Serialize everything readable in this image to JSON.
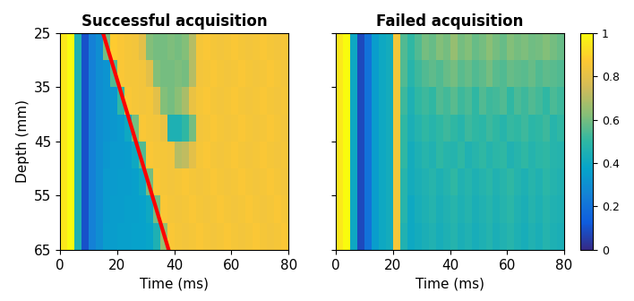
{
  "chart_data": [
    {
      "type": "heatmap",
      "title": "Successful acquisition",
      "x_label": "Time (ms)",
      "y_label": "Depth (mm)",
      "xlim": [
        0,
        80
      ],
      "xticks": [
        0,
        20,
        40,
        60,
        80
      ],
      "ylim": [
        65,
        25
      ],
      "yticks": [
        25,
        35,
        45,
        55,
        65
      ],
      "tick_labels": true,
      "x_edges": [
        0,
        2.5,
        5,
        7.5,
        10,
        12.5,
        15,
        17.5,
        20,
        22.5,
        25,
        27.5,
        30,
        32.5,
        35,
        37.5,
        40,
        42.5,
        45,
        47.5,
        50,
        52.5,
        55,
        57.5,
        60,
        62.5,
        65,
        67.5,
        70,
        72.5,
        75,
        77.5,
        80
      ],
      "y_edges": [
        25,
        30,
        35,
        40,
        45,
        50,
        55,
        60,
        65
      ],
      "cells": [
        [
          0.95,
          1.0,
          0.45,
          0.1,
          0.25,
          0.3,
          0.6,
          0.88,
          0.86,
          0.85,
          0.84,
          0.8,
          0.62,
          0.6,
          0.6,
          0.61,
          0.6,
          0.62,
          0.7,
          0.85,
          0.86,
          0.85,
          0.84,
          0.85,
          0.86,
          0.85,
          0.84,
          0.85,
          0.86,
          0.85,
          0.84,
          0.85
        ],
        [
          0.95,
          1.0,
          0.45,
          0.1,
          0.25,
          0.3,
          0.32,
          0.55,
          0.86,
          0.85,
          0.85,
          0.84,
          0.8,
          0.62,
          0.6,
          0.6,
          0.61,
          0.6,
          0.7,
          0.84,
          0.85,
          0.86,
          0.85,
          0.84,
          0.85,
          0.86,
          0.85,
          0.84,
          0.85,
          0.86,
          0.85,
          0.84
        ],
        [
          0.95,
          1.0,
          0.45,
          0.1,
          0.25,
          0.3,
          0.32,
          0.33,
          0.5,
          0.86,
          0.85,
          0.84,
          0.85,
          0.8,
          0.62,
          0.6,
          0.63,
          0.68,
          0.82,
          0.85,
          0.86,
          0.85,
          0.84,
          0.85,
          0.86,
          0.85,
          0.84,
          0.85,
          0.86,
          0.85,
          0.84,
          0.85
        ],
        [
          0.95,
          1.0,
          0.45,
          0.1,
          0.25,
          0.3,
          0.32,
          0.33,
          0.34,
          0.4,
          0.6,
          0.86,
          0.85,
          0.84,
          0.82,
          0.45,
          0.45,
          0.5,
          0.6,
          0.84,
          0.85,
          0.86,
          0.85,
          0.84,
          0.85,
          0.86,
          0.85,
          0.84,
          0.85,
          0.86,
          0.85,
          0.84
        ],
        [
          0.95,
          1.0,
          0.45,
          0.1,
          0.25,
          0.3,
          0.33,
          0.34,
          0.34,
          0.35,
          0.4,
          0.55,
          0.86,
          0.85,
          0.85,
          0.84,
          0.7,
          0.72,
          0.8,
          0.85,
          0.86,
          0.85,
          0.84,
          0.85,
          0.86,
          0.85,
          0.84,
          0.85,
          0.86,
          0.85,
          0.84,
          0.85
        ],
        [
          0.95,
          1.0,
          0.45,
          0.1,
          0.25,
          0.3,
          0.34,
          0.34,
          0.35,
          0.35,
          0.36,
          0.4,
          0.6,
          0.86,
          0.85,
          0.84,
          0.85,
          0.86,
          0.85,
          0.84,
          0.85,
          0.86,
          0.85,
          0.84,
          0.85,
          0.86,
          0.85,
          0.84,
          0.85,
          0.86,
          0.85,
          0.84
        ],
        [
          0.95,
          1.0,
          0.45,
          0.1,
          0.25,
          0.3,
          0.34,
          0.35,
          0.35,
          0.36,
          0.36,
          0.37,
          0.4,
          0.6,
          0.86,
          0.85,
          0.84,
          0.85,
          0.86,
          0.85,
          0.84,
          0.85,
          0.86,
          0.85,
          0.84,
          0.85,
          0.86,
          0.85,
          0.84,
          0.85,
          0.86,
          0.85
        ],
        [
          0.95,
          1.0,
          0.45,
          0.1,
          0.25,
          0.3,
          0.35,
          0.35,
          0.36,
          0.36,
          0.37,
          0.37,
          0.38,
          0.45,
          0.65,
          0.86,
          0.85,
          0.84,
          0.85,
          0.86,
          0.85,
          0.84,
          0.85,
          0.86,
          0.85,
          0.84,
          0.85,
          0.86,
          0.85,
          0.84,
          0.85,
          0.86
        ]
      ],
      "line": {
        "x": [
          15,
          38
        ],
        "y": [
          25,
          65
        ],
        "color": "#ff0000"
      }
    },
    {
      "type": "heatmap",
      "title": "Failed acquisition",
      "x_label": "Time (ms)",
      "xlim": [
        0,
        80
      ],
      "xticks": [
        0,
        20,
        40,
        60,
        80
      ],
      "ylim": [
        65,
        25
      ],
      "yticks": [
        25,
        35,
        45,
        55,
        65
      ],
      "tick_labels": "x",
      "x_edges": [
        0,
        2.5,
        5,
        7.5,
        10,
        12.5,
        15,
        17.5,
        20,
        22.5,
        25,
        27.5,
        30,
        32.5,
        35,
        37.5,
        40,
        42.5,
        45,
        47.5,
        50,
        52.5,
        55,
        57.5,
        60,
        62.5,
        65,
        67.5,
        70,
        72.5,
        75,
        77.5,
        80
      ],
      "y_edges": [
        25,
        30,
        35,
        40,
        45,
        50,
        55,
        60,
        65
      ],
      "cells": [
        [
          0.95,
          1.0,
          0.4,
          0.08,
          0.2,
          0.35,
          0.4,
          0.42,
          0.85,
          0.55,
          0.5,
          0.55,
          0.6,
          0.58,
          0.62,
          0.6,
          0.65,
          0.6,
          0.62,
          0.58,
          0.6,
          0.63,
          0.6,
          0.58,
          0.62,
          0.6,
          0.61,
          0.59,
          0.6,
          0.62,
          0.6,
          0.58
        ],
        [
          0.95,
          1.0,
          0.4,
          0.08,
          0.2,
          0.35,
          0.4,
          0.42,
          0.85,
          0.55,
          0.48,
          0.52,
          0.55,
          0.57,
          0.55,
          0.58,
          0.6,
          0.56,
          0.58,
          0.55,
          0.57,
          0.6,
          0.56,
          0.55,
          0.58,
          0.57,
          0.56,
          0.58,
          0.55,
          0.57,
          0.56,
          0.55
        ],
        [
          0.95,
          1.0,
          0.4,
          0.08,
          0.2,
          0.35,
          0.4,
          0.42,
          0.85,
          0.52,
          0.45,
          0.5,
          0.52,
          0.5,
          0.55,
          0.53,
          0.56,
          0.52,
          0.54,
          0.5,
          0.55,
          0.52,
          0.53,
          0.55,
          0.5,
          0.54,
          0.52,
          0.55,
          0.53,
          0.5,
          0.54,
          0.52
        ],
        [
          0.95,
          1.0,
          0.4,
          0.08,
          0.2,
          0.35,
          0.4,
          0.42,
          0.85,
          0.5,
          0.44,
          0.47,
          0.5,
          0.48,
          0.5,
          0.52,
          0.5,
          0.48,
          0.52,
          0.5,
          0.49,
          0.52,
          0.5,
          0.48,
          0.51,
          0.5,
          0.52,
          0.49,
          0.5,
          0.52,
          0.48,
          0.5
        ],
        [
          0.95,
          1.0,
          0.4,
          0.08,
          0.2,
          0.35,
          0.4,
          0.42,
          0.85,
          0.5,
          0.42,
          0.45,
          0.48,
          0.46,
          0.5,
          0.48,
          0.47,
          0.5,
          0.46,
          0.48,
          0.5,
          0.47,
          0.49,
          0.5,
          0.46,
          0.48,
          0.5,
          0.47,
          0.49,
          0.5,
          0.48,
          0.47
        ],
        [
          0.95,
          1.0,
          0.4,
          0.08,
          0.2,
          0.35,
          0.4,
          0.42,
          0.85,
          0.48,
          0.42,
          0.44,
          0.46,
          0.48,
          0.45,
          0.47,
          0.5,
          0.46,
          0.48,
          0.45,
          0.47,
          0.49,
          0.46,
          0.48,
          0.5,
          0.47,
          0.45,
          0.48,
          0.46,
          0.49,
          0.47,
          0.46
        ],
        [
          0.95,
          1.0,
          0.4,
          0.08,
          0.2,
          0.35,
          0.4,
          0.42,
          0.85,
          0.48,
          0.4,
          0.43,
          0.45,
          0.47,
          0.44,
          0.46,
          0.48,
          0.45,
          0.47,
          0.44,
          0.46,
          0.48,
          0.45,
          0.47,
          0.49,
          0.46,
          0.44,
          0.47,
          0.45,
          0.48,
          0.46,
          0.45
        ],
        [
          0.95,
          1.0,
          0.4,
          0.08,
          0.2,
          0.35,
          0.4,
          0.42,
          0.85,
          0.46,
          0.4,
          0.42,
          0.44,
          0.46,
          0.43,
          0.45,
          0.47,
          0.44,
          0.46,
          0.43,
          0.45,
          0.47,
          0.44,
          0.46,
          0.48,
          0.45,
          0.43,
          0.46,
          0.44,
          0.47,
          0.45,
          0.44
        ]
      ],
      "colorbar": {
        "range": [
          0,
          1
        ],
        "ticks": [
          0,
          0.2,
          0.4,
          0.6,
          0.8,
          1
        ]
      }
    }
  ]
}
